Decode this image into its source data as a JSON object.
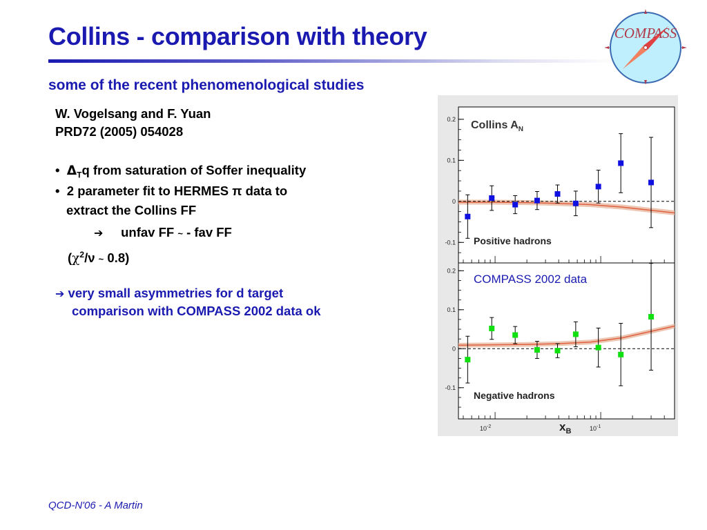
{
  "slide": {
    "title": "Collins - comparison with theory",
    "subtitle": "some of the recent phenomenological studies",
    "reference_line1": "W. Vogelsang and F. Yuan",
    "reference_line2": "PRD72 (2005) 054028",
    "bullet_symbol": "•",
    "bullet1_delta": "Δ",
    "bullet1_sub": "T",
    "bullet1_rest": "q from saturation of Soffer inequality",
    "bullet2_line1": "2 parameter fit to HERMES π data to",
    "bullet2_line2": "extract the Collins FF",
    "arrow": "➔",
    "ff_relation_a": "unfav FF ",
    "ff_tilde": "~",
    "ff_relation_b": " - fav FF",
    "chi2_open": "(",
    "chi2_chi": "χ",
    "chi2_sup": "2",
    "chi2_slash": "/ν ",
    "chi2_tilde": "~",
    "chi2_close": " 0.8)",
    "conclusion_line1": "very small asymmetries for d target",
    "conclusion_line2": "comparison with COMPASS 2002 data ok",
    "footer": "QCD-N'06  -  A Martin",
    "logo_text": "COMPASS"
  },
  "chart_data": [
    {
      "type": "scatter",
      "title": "Collins A",
      "title_sub": "N",
      "panel_label": "Positive hadrons",
      "x_scale": "log",
      "xlim": [
        0.0045,
        0.5
      ],
      "ylim": [
        -0.15,
        0.23
      ],
      "y_ticks": [
        0.2,
        0.1,
        0,
        -0.1
      ],
      "y_tick_labels": [
        "0.2",
        "0.1",
        "0",
        "-0.1"
      ],
      "dashed_zero_line": true,
      "marker_color": "#1010e0",
      "series": [
        {
          "x": [
            0.0055,
            0.0093,
            0.0155,
            0.025,
            0.039,
            0.058,
            0.095,
            0.155,
            0.3
          ],
          "y": [
            -0.037,
            0.008,
            -0.008,
            0.002,
            0.018,
            -0.005,
            0.036,
            0.093,
            0.046
          ],
          "err": [
            0.053,
            0.03,
            0.022,
            0.022,
            0.022,
            0.03,
            0.04,
            0.072,
            0.11
          ]
        }
      ],
      "theory": {
        "color": "#e06040",
        "band_color": "#e8b8a0",
        "x": [
          0.0045,
          0.01,
          0.02,
          0.04,
          0.08,
          0.16,
          0.5
        ],
        "y": [
          -0.002,
          -0.002,
          -0.003,
          -0.005,
          -0.008,
          -0.014,
          -0.028
        ]
      }
    },
    {
      "type": "scatter",
      "annotation": "COMPASS 2002 data",
      "panel_label": "Negative hadrons",
      "x_scale": "log",
      "xlim": [
        0.0045,
        0.5
      ],
      "ylim": [
        -0.18,
        0.22
      ],
      "y_ticks": [
        0.2,
        0.1,
        0,
        -0.1
      ],
      "y_tick_labels": [
        "0.2",
        "0.1",
        "0",
        "-0.1"
      ],
      "x_tick_labels": [
        "10-2",
        "10-1"
      ],
      "x_label": "x",
      "x_label_sub": "B",
      "dashed_zero_line": true,
      "marker_color": "#10e010",
      "series": [
        {
          "x": [
            0.0055,
            0.0093,
            0.0155,
            0.025,
            0.039,
            0.058,
            0.095,
            0.155,
            0.3
          ],
          "y": [
            -0.028,
            0.052,
            0.035,
            -0.003,
            -0.005,
            0.037,
            0.003,
            -0.015,
            0.082
          ],
          "err": [
            0.06,
            0.028,
            0.022,
            0.022,
            0.018,
            0.032,
            0.05,
            0.08,
            0.137
          ]
        }
      ],
      "theory": {
        "color": "#e06040",
        "band_color": "#e8b8a0",
        "x": [
          0.0045,
          0.01,
          0.02,
          0.04,
          0.08,
          0.16,
          0.5
        ],
        "y": [
          0.009,
          0.01,
          0.011,
          0.013,
          0.017,
          0.028,
          0.058
        ]
      }
    }
  ]
}
